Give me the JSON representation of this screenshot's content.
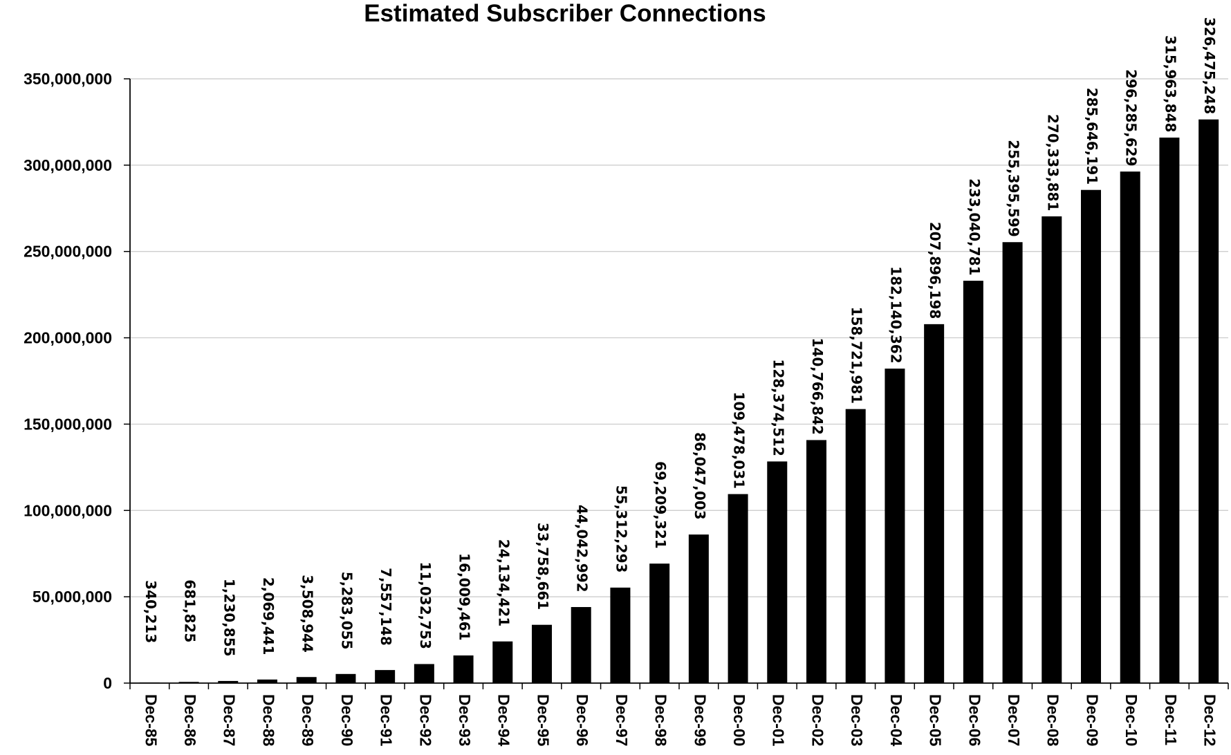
{
  "chart_data": {
    "type": "bar",
    "title": "Estimated Subscriber Connections",
    "xlabel": "",
    "ylabel": "",
    "ylim": [
      0,
      350000000
    ],
    "yticks": [
      0,
      50000000,
      100000000,
      150000000,
      200000000,
      250000000,
      300000000,
      350000000
    ],
    "ytick_labels": [
      "0",
      "50,000,000",
      "100,000,000",
      "150,000,000",
      "200,000,000",
      "250,000,000",
      "300,000,000",
      "350,000,000"
    ],
    "grid": true,
    "legend": "none",
    "bar_color": "#000000",
    "categories": [
      "Dec-85",
      "Dec-86",
      "Dec-87",
      "Dec-88",
      "Dec-89",
      "Dec-90",
      "Dec-91",
      "Dec-92",
      "Dec-93",
      "Dec-94",
      "Dec-95",
      "Dec-96",
      "Dec-97",
      "Dec-98",
      "Dec-99",
      "Dec-00",
      "Dec-01",
      "Dec-02",
      "Dec-03",
      "Dec-04",
      "Dec-05",
      "Dec-06",
      "Dec-07",
      "Dec-08",
      "Dec-09",
      "Dec-10",
      "Dec-11",
      "Dec-12"
    ],
    "values": [
      340213,
      681825,
      1230855,
      2069441,
      3508944,
      5283055,
      7557148,
      11032753,
      16009461,
      24134421,
      33758661,
      44042992,
      55312293,
      69209321,
      86047003,
      109478031,
      128374512,
      140766842,
      158721981,
      182140362,
      207896198,
      233040781,
      255395599,
      270333881,
      285646191,
      296285629,
      315963848,
      326475248
    ],
    "data_labels": [
      "340,213",
      "681,825",
      "1,230,855",
      "2,069,441",
      "3,508,944",
      "5,283,055",
      "7,557,148",
      "11,032,753",
      "16,009,461",
      "24,134,421",
      "33,758,661",
      "44,042,992",
      "55,312,293",
      "69,209,321",
      "86,047,003",
      "109,478,031",
      "128,374,512",
      "140,766,842",
      "158,721,981",
      "182,140,362",
      "207,896,198",
      "233,040,781",
      "255,395,599",
      "270,333,881",
      "285,646,191",
      "296,285,629",
      "315,963,848",
      "326,475,248"
    ]
  }
}
